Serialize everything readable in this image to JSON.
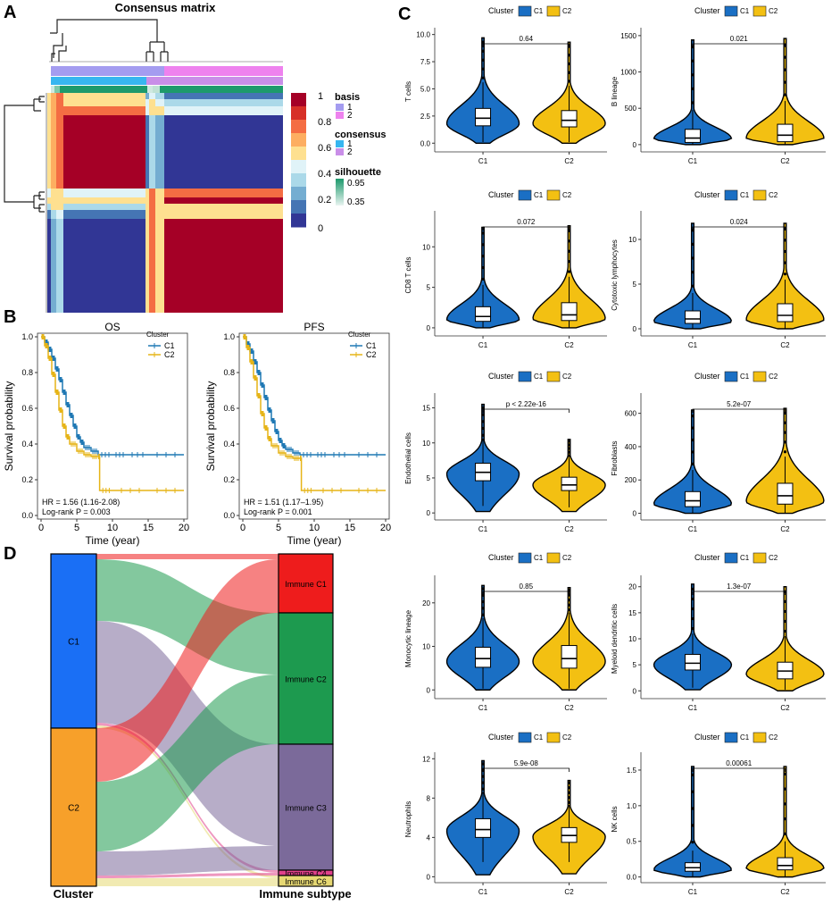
{
  "colors": {
    "c1": "#1a6fc4",
    "c2": "#f3c012",
    "km_c1": "#1f78b4",
    "km_c2": "#e6b417",
    "basis1": "#a49cf0",
    "basis2": "#ee82ee",
    "consensus1": "#37b6f0",
    "consensus2": "#c98ee8",
    "sil_high": "#1d9a6c",
    "sil_low": "#e8f4f0",
    "cm_high": "#a50026",
    "cm_low": "#313695",
    "sankey_c1": "#1a6ff5",
    "sankey_c2": "#f7a02a",
    "imm_c1": "#ee1c1c",
    "imm_c2": "#1d9a4f",
    "imm_c3": "#7b6a9a",
    "imm_c4": "#e0418b",
    "imm_c6": "#e6d873"
  },
  "panels": {
    "A": {
      "letter": "A",
      "title": "Consensus matrix",
      "legend": {
        "colorbar_ticks": [
          "1",
          "0.8",
          "0.6",
          "0.4",
          "0.2",
          "0"
        ],
        "basis_title": "basis",
        "basis_items": [
          "1",
          "2"
        ],
        "consensus_title": "consensus",
        "consensus_items": [
          "1",
          "2"
        ],
        "silhouette_title": "silhouette",
        "silhouette_ticks": [
          "0.95",
          "0.35"
        ]
      }
    },
    "B": {
      "letter": "B",
      "ylabel": "Survival probability",
      "xlabel": "Time (year)",
      "legend_title": "Cluster",
      "series_names": [
        "C1",
        "C2"
      ],
      "xticks": [
        "0",
        "5",
        "10",
        "15",
        "20"
      ],
      "yticks": [
        "0.0",
        "0.2",
        "0.4",
        "0.6",
        "0.8",
        "1.0"
      ]
    },
    "C": {
      "letter": "C"
    },
    "D": {
      "letter": "D",
      "left_axis_label": "Cluster",
      "right_axis_label": "Immune subtype",
      "left_nodes": [
        "C1",
        "C2"
      ],
      "right_nodes": [
        "Immune C1",
        "Immune C2",
        "Immune C3",
        "Immune C4",
        "Immune C6"
      ]
    }
  },
  "chart_data": [
    {
      "panel": "B-OS",
      "type": "line",
      "title": "OS",
      "xlabel": "Time (year)",
      "ylabel": "Survival probability",
      "xlim": [
        0,
        20
      ],
      "ylim": [
        0,
        1
      ],
      "legend_title": "Cluster",
      "series": [
        {
          "name": "C1",
          "x": [
            0,
            0.5,
            1,
            1.5,
            2,
            2.5,
            3,
            3.5,
            4,
            4.5,
            5,
            5.5,
            6,
            7,
            8,
            10,
            12,
            15,
            20
          ],
          "y": [
            1.0,
            0.97,
            0.93,
            0.88,
            0.82,
            0.76,
            0.69,
            0.62,
            0.56,
            0.5,
            0.44,
            0.41,
            0.38,
            0.36,
            0.34,
            0.34,
            0.34,
            0.34,
            0.34
          ]
        },
        {
          "name": "C2",
          "x": [
            0,
            0.5,
            1,
            1.5,
            2,
            2.5,
            3,
            3.5,
            4,
            5,
            6,
            7,
            8,
            8.2,
            10,
            15,
            20
          ],
          "y": [
            1.0,
            0.95,
            0.88,
            0.79,
            0.69,
            0.59,
            0.5,
            0.44,
            0.4,
            0.36,
            0.34,
            0.33,
            0.33,
            0.14,
            0.14,
            0.14,
            0.14
          ]
        }
      ],
      "annotations": [
        "HR = 1.56 (1.16-2.08)",
        "Log-rank P = 0.003"
      ]
    },
    {
      "panel": "B-PFS",
      "type": "line",
      "title": "PFS",
      "xlabel": "Time (year)",
      "ylabel": "Survival probability",
      "xlim": [
        0,
        20
      ],
      "ylim": [
        0,
        1
      ],
      "legend_title": "Cluster",
      "series": [
        {
          "name": "C1",
          "x": [
            0,
            0.5,
            1,
            1.5,
            2,
            2.5,
            3,
            3.5,
            4,
            4.5,
            5,
            5.5,
            6,
            7,
            8,
            10,
            12,
            15,
            20
          ],
          "y": [
            1.0,
            0.96,
            0.92,
            0.86,
            0.8,
            0.73,
            0.66,
            0.59,
            0.53,
            0.47,
            0.42,
            0.39,
            0.37,
            0.35,
            0.34,
            0.34,
            0.34,
            0.34,
            0.34
          ]
        },
        {
          "name": "C2",
          "x": [
            0,
            0.5,
            1,
            1.5,
            2,
            2.5,
            3,
            3.5,
            4,
            5,
            6,
            7,
            8,
            8.2,
            10,
            15,
            20
          ],
          "y": [
            1.0,
            0.94,
            0.86,
            0.77,
            0.67,
            0.57,
            0.49,
            0.43,
            0.39,
            0.35,
            0.33,
            0.32,
            0.32,
            0.14,
            0.14,
            0.14,
            0.14
          ]
        }
      ],
      "annotations": [
        "HR = 1.51 (1.17–1.95)",
        "Log-rank P = 0.001"
      ]
    },
    {
      "panel": "C",
      "type": "violin",
      "ylabel": "T cells",
      "categories": [
        "C1",
        "C2"
      ],
      "legend_title": "Cluster",
      "yticks": [
        0,
        2.5,
        5,
        7.5,
        10
      ],
      "ytick_labels": [
        "0.0",
        "2.5",
        "5.0",
        "7.5",
        "10.0"
      ],
      "ylim": [
        -0.8,
        10.3
      ],
      "p_label": "0.64",
      "range": [
        [
          0,
          9.7
        ],
        [
          0,
          9.3
        ]
      ],
      "box": [
        [
          1.6,
          2.3,
          3.2
        ],
        [
          1.5,
          2.1,
          3.0
        ]
      ],
      "whisker": [
        [
          0.1,
          5.6
        ],
        [
          0.1,
          5.3
        ]
      ],
      "peak": [
        1.8,
        1.8
      ]
    },
    {
      "panel": "C",
      "type": "violin",
      "ylabel": "B lineage",
      "categories": [
        "C1",
        "C2"
      ],
      "legend_title": "Cluster",
      "yticks": [
        0,
        500,
        1000,
        1500
      ],
      "ytick_labels": [
        "0",
        "500",
        "1000",
        "1500"
      ],
      "ylim": [
        -100,
        1560
      ],
      "p_label": "0.021",
      "range": [
        [
          0,
          1440
        ],
        [
          0,
          1460
        ]
      ],
      "box": [
        [
          30,
          90,
          210
        ],
        [
          40,
          130,
          280
        ]
      ],
      "whisker": [
        [
          0,
          480
        ],
        [
          0,
          600
        ]
      ],
      "peak": [
        80,
        90
      ]
    },
    {
      "panel": "C",
      "type": "violin",
      "ylabel": "CD8 T cells",
      "categories": [
        "C1",
        "C2"
      ],
      "legend_title": "Cluster",
      "yticks": [
        0,
        5,
        10
      ],
      "ytick_labels": [
        "0",
        "5",
        "10"
      ],
      "ylim": [
        -1,
        14
      ],
      "p_label": "0.072",
      "range": [
        [
          0,
          12.4
        ],
        [
          0,
          12.6
        ]
      ],
      "box": [
        [
          0.8,
          1.4,
          2.6
        ],
        [
          0.9,
          1.6,
          3.1
        ]
      ],
      "whisker": [
        [
          0,
          5.3
        ],
        [
          0,
          6.3
        ]
      ],
      "peak": [
        1.0,
        1.1
      ]
    },
    {
      "panel": "C",
      "type": "violin",
      "ylabel": "Cytotoxic lymphocytes",
      "categories": [
        "C1",
        "C2"
      ],
      "legend_title": "Cluster",
      "yticks": [
        0,
        5,
        10
      ],
      "ytick_labels": [
        "0",
        "5",
        "10"
      ],
      "ylim": [
        -0.8,
        12.8
      ],
      "p_label": "0.024",
      "range": [
        [
          0,
          11.8
        ],
        [
          0,
          11.8
        ]
      ],
      "box": [
        [
          0.6,
          1.1,
          2.0
        ],
        [
          0.8,
          1.5,
          2.8
        ]
      ],
      "whisker": [
        [
          0,
          4.0
        ],
        [
          0,
          5.5
        ]
      ],
      "peak": [
        0.8,
        1.0
      ]
    },
    {
      "panel": "C",
      "type": "violin",
      "ylabel": "Endothelial cells",
      "categories": [
        "C1",
        "C2"
      ],
      "legend_title": "Cluster",
      "yticks": [
        0,
        5,
        10,
        15
      ],
      "ytick_labels": [
        "0",
        "5",
        "10",
        "15"
      ],
      "ylim": [
        -1,
        16.6
      ],
      "p_label": "p < 2.22e-16",
      "range": [
        [
          0.2,
          15.5
        ],
        [
          0.2,
          10.5
        ]
      ],
      "box": [
        [
          4.6,
          5.8,
          7.1
        ],
        [
          3.2,
          4.0,
          5.1
        ]
      ],
      "whisker": [
        [
          1.0,
          10.6
        ],
        [
          0.8,
          7.9
        ]
      ],
      "peak": [
        5.6,
        4.0
      ]
    },
    {
      "panel": "C",
      "type": "violin",
      "ylabel": "Fibroblasts",
      "categories": [
        "C1",
        "C2"
      ],
      "legend_title": "Cluster",
      "yticks": [
        0,
        200,
        400,
        600
      ],
      "ytick_labels": [
        "0",
        "200",
        "400",
        "600"
      ],
      "ylim": [
        -40,
        700
      ],
      "p_label": "5.2e-07",
      "range": [
        [
          0,
          620
        ],
        [
          0,
          630
        ]
      ],
      "box": [
        [
          40,
          75,
          130
        ],
        [
          55,
          105,
          180
        ]
      ],
      "whisker": [
        [
          0,
          260
        ],
        [
          0,
          340
        ]
      ],
      "peak": [
        55,
        70
      ]
    },
    {
      "panel": "C",
      "type": "violin",
      "ylabel": "Monocytic lineage",
      "categories": [
        "C1",
        "C2"
      ],
      "legend_title": "Cluster",
      "yticks": [
        0,
        10,
        20
      ],
      "ytick_labels": [
        "0",
        "10",
        "20"
      ],
      "ylim": [
        -2,
        25.5
      ],
      "p_label": "0.85",
      "range": [
        [
          0,
          24
        ],
        [
          0,
          23.5
        ]
      ],
      "box": [
        [
          5.2,
          7.2,
          9.8
        ],
        [
          5.0,
          7.2,
          10.2
        ]
      ],
      "whisker": [
        [
          0.3,
          16.5
        ],
        [
          0.3,
          17.8
        ]
      ],
      "peak": [
        6.5,
        6.5
      ]
    },
    {
      "panel": "C",
      "type": "violin",
      "ylabel": "Myeloid dendritic cells",
      "categories": [
        "C1",
        "C2"
      ],
      "legend_title": "Cluster",
      "yticks": [
        0,
        5,
        10,
        15,
        20
      ],
      "ytick_labels": [
        "0",
        "5",
        "10",
        "15",
        "20"
      ],
      "ylim": [
        -1.5,
        21.5
      ],
      "p_label": "1.3e-07",
      "range": [
        [
          0.2,
          20.5
        ],
        [
          0,
          20.0
        ]
      ],
      "box": [
        [
          4.0,
          5.3,
          7.0
        ],
        [
          2.3,
          3.8,
          5.5
        ]
      ],
      "whisker": [
        [
          0.6,
          11.0
        ],
        [
          0.2,
          10.5
        ]
      ],
      "peak": [
        5.0,
        3.2
      ]
    },
    {
      "panel": "C",
      "type": "violin",
      "ylabel": "Neutrophils",
      "categories": [
        "C1",
        "C2"
      ],
      "legend_title": "Cluster",
      "yticks": [
        0,
        4,
        8,
        12
      ],
      "ytick_labels": [
        "0",
        "4",
        "8",
        "12"
      ],
      "ylim": [
        -0.6,
        12.3
      ],
      "p_label": "5.9e-08",
      "range": [
        [
          0.2,
          11.8
        ],
        [
          0.3,
          9.8
        ]
      ],
      "box": [
        [
          4.0,
          4.8,
          5.9
        ],
        [
          3.5,
          4.2,
          5.0
        ]
      ],
      "whisker": [
        [
          1.5,
          8.6
        ],
        [
          1.5,
          7.3
        ]
      ],
      "peak": [
        4.7,
        4.1
      ]
    },
    {
      "panel": "C",
      "type": "violin",
      "ylabel": "NK cells",
      "categories": [
        "C1",
        "C2"
      ],
      "legend_title": "Cluster",
      "yticks": [
        0,
        0.5,
        1,
        1.5
      ],
      "ytick_labels": [
        "0.0",
        "0.5",
        "1.0",
        "1.5"
      ],
      "ylim": [
        -0.08,
        1.7
      ],
      "p_label": "0.00061",
      "range": [
        [
          0,
          1.55
        ],
        [
          0,
          1.55
        ]
      ],
      "box": [
        [
          0.08,
          0.13,
          0.2
        ],
        [
          0.1,
          0.16,
          0.27
        ]
      ],
      "whisker": [
        [
          0,
          0.37
        ],
        [
          0,
          0.5
        ]
      ],
      "peak": [
        0.1,
        0.12
      ]
    },
    {
      "panel": "D",
      "type": "sankey",
      "sources": [
        "C1",
        "C2"
      ],
      "targets": [
        "Immune C1",
        "Immune C2",
        "Immune C3",
        "Immune C4",
        "Immune C6"
      ],
      "flows": [
        {
          "source": "C1",
          "target": "Immune C1",
          "value": 2
        },
        {
          "source": "C1",
          "target": "Immune C2",
          "value": 23
        },
        {
          "source": "C1",
          "target": "Immune C3",
          "value": 38
        },
        {
          "source": "C1",
          "target": "Immune C4",
          "value": 1
        },
        {
          "source": "C1",
          "target": "Immune C6",
          "value": 1
        },
        {
          "source": "C2",
          "target": "Immune C1",
          "value": 20
        },
        {
          "source": "C2",
          "target": "Immune C2",
          "value": 26
        },
        {
          "source": "C2",
          "target": "Immune C3",
          "value": 9
        },
        {
          "source": "C2",
          "target": "Immune C4",
          "value": 1
        },
        {
          "source": "C2",
          "target": "Immune C6",
          "value": 3
        }
      ]
    }
  ]
}
